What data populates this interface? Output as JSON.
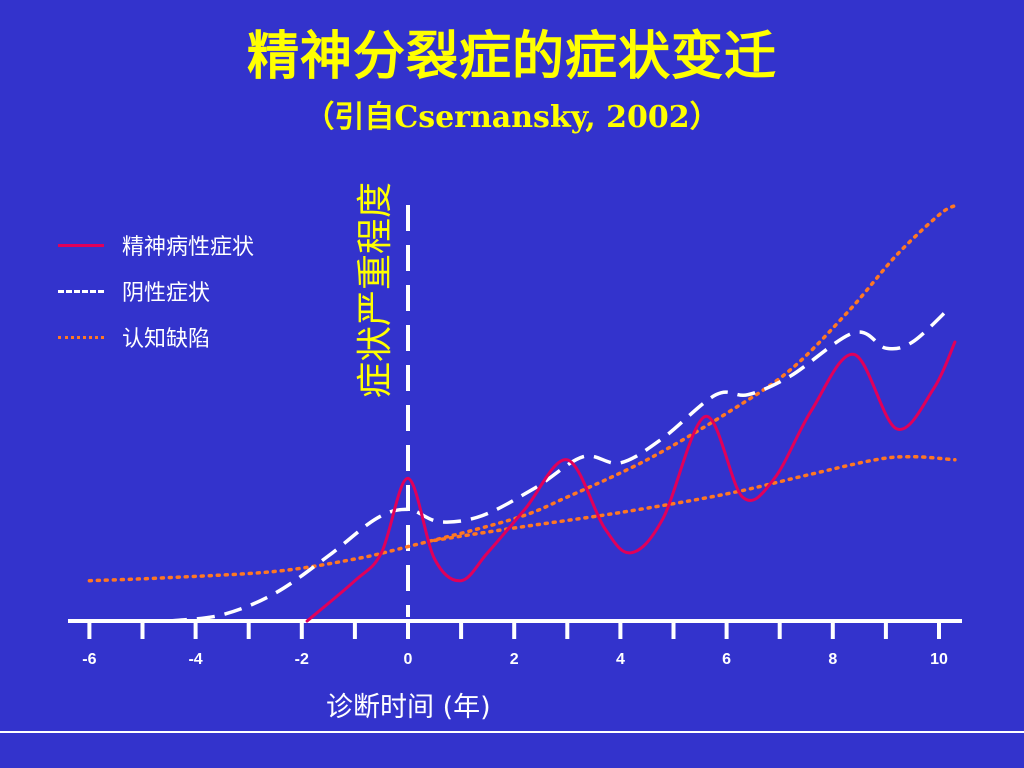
{
  "slide": {
    "title": "精神分裂症的症状变迁",
    "subtitle": "（引自Csernansky, 2002）"
  },
  "chart_data": {
    "type": "line",
    "xlabel": "诊断时间 (年)",
    "ylabel": "症状严重程度",
    "xlim": [
      -6,
      10.5
    ],
    "x_ticks": [
      -6,
      -4,
      -2,
      0,
      2,
      4,
      6,
      8,
      10
    ],
    "y_axis_shown": false,
    "grid": false,
    "legend_position": "top-left",
    "reference_line": {
      "x": 0,
      "style": "dashed",
      "color": "#ffffff"
    },
    "series": [
      {
        "name": "精神病性症状",
        "style": "solid",
        "color": "#e0005a",
        "points": [
          [
            -1.9,
            0.0
          ],
          [
            -1.0,
            13.0
          ],
          [
            -0.5,
            22.0
          ],
          [
            0.0,
            46.0
          ],
          [
            0.5,
            20.0
          ],
          [
            1.0,
            13.0
          ],
          [
            1.5,
            22.0
          ],
          [
            2.2,
            36.0
          ],
          [
            3.0,
            52.0
          ],
          [
            3.7,
            30.0
          ],
          [
            4.2,
            22.0
          ],
          [
            4.8,
            33.0
          ],
          [
            5.6,
            66.0
          ],
          [
            6.3,
            40.0
          ],
          [
            6.9,
            46.0
          ],
          [
            7.6,
            68.0
          ],
          [
            8.4,
            86.0
          ],
          [
            9.2,
            62.0
          ],
          [
            9.9,
            75.0
          ],
          [
            10.3,
            90.0
          ]
        ]
      },
      {
        "name": "阴性症状",
        "style": "dashed",
        "color": "#ffffff",
        "points": [
          [
            -4.5,
            0.0
          ],
          [
            -3.5,
            2.0
          ],
          [
            -2.5,
            9.0
          ],
          [
            -1.5,
            21.0
          ],
          [
            -0.6,
            33.0
          ],
          [
            0.0,
            36.0
          ],
          [
            0.6,
            32.0
          ],
          [
            1.4,
            34.0
          ],
          [
            2.4,
            43.0
          ],
          [
            3.3,
            53.0
          ],
          [
            4.0,
            51.0
          ],
          [
            4.8,
            59.0
          ],
          [
            5.8,
            73.0
          ],
          [
            6.4,
            73.0
          ],
          [
            7.2,
            79.0
          ],
          [
            8.4,
            93.0
          ],
          [
            9.0,
            88.0
          ],
          [
            9.5,
            90.0
          ],
          [
            10.2,
            101.0
          ]
        ]
      },
      {
        "name": "认知缺陷",
        "style": "dotted",
        "color": "#ff7722",
        "points": [
          [
            -6.0,
            13.0
          ],
          [
            -4.5,
            14.0
          ],
          [
            -2.5,
            16.0
          ],
          [
            -1.0,
            20.0
          ],
          [
            0.0,
            24.0
          ],
          [
            2.0,
            33.0
          ],
          [
            3.0,
            40.0
          ],
          [
            4.5,
            52.0
          ],
          [
            6.0,
            67.0
          ],
          [
            7.2,
            81.0
          ],
          [
            8.3,
            100.0
          ],
          [
            9.2,
            118.0
          ],
          [
            10.0,
            131.0
          ],
          [
            10.3,
            134.0
          ]
        ]
      },
      {
        "name": "认知缺陷",
        "style": "dotted",
        "color": "#ff7722",
        "points": [
          [
            0.5,
            26.0
          ],
          [
            2.0,
            30.0
          ],
          [
            4.0,
            35.0
          ],
          [
            6.0,
            41.0
          ],
          [
            7.5,
            47.0
          ],
          [
            8.8,
            52.0
          ],
          [
            9.5,
            53.0
          ],
          [
            10.3,
            52.0
          ]
        ]
      }
    ]
  }
}
